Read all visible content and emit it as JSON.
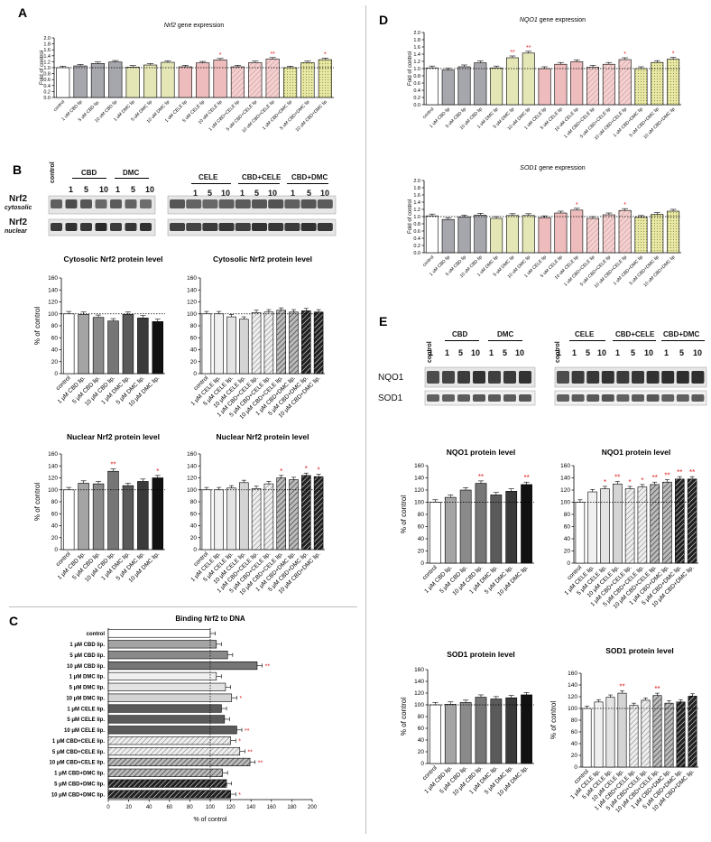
{
  "panels": {
    "A": "A",
    "B": "B",
    "C": "C",
    "D": "D",
    "E": "E"
  },
  "blots": {
    "B": {
      "row1_label": "Nrf2",
      "row1_sub": "cytosolic",
      "row2_label": "Nrf2",
      "row2_sub": "nuclear",
      "left": {
        "control": "control",
        "groups": [
          "CBD",
          "DMC"
        ],
        "doses": [
          "1",
          "5",
          "10"
        ]
      },
      "right": {
        "groups": [
          "CELE",
          "CBD+CELE",
          "CBD+DMC"
        ],
        "doses": [
          "1",
          "5",
          "10"
        ]
      }
    },
    "E": {
      "row1_label": "NQO1",
      "row2_label": "SOD1",
      "left": {
        "control": "control",
        "groups": [
          "CBD",
          "DMC"
        ],
        "doses": [
          "1",
          "5",
          "10"
        ]
      },
      "right": {
        "control": "control",
        "groups": [
          "CELE",
          "CBD+CELE",
          "CBD+DMC"
        ],
        "doses": [
          "1",
          "5",
          "10"
        ]
      }
    }
  },
  "colors": {
    "white": "#ffffff",
    "grey": "#a6a6ad",
    "yellow": "#e5e6b5",
    "pink": "#eebcbc",
    "yellowhatch": "#d9d98c",
    "sig": "#e02020"
  },
  "chart_data": [
    {
      "id": "A",
      "type": "bar",
      "title": "Nrf2 gene expression",
      "title_italic_part": "Nrf2",
      "title_rest": " gene expression",
      "ylabel": "Fold of control",
      "ylim": [
        0,
        2.0
      ],
      "yticks": [
        "0.0",
        "0.2",
        "0.4",
        "0.6",
        "0.8",
        "1.0",
        "1.2",
        "1.4",
        "1.6",
        "1.8",
        "2.0"
      ],
      "reference_line": 1.0,
      "categories": [
        "control",
        "1 uM CBD lip",
        "5 uM CBD lip.",
        "10 uM CBD lip",
        "1 uM DMC lip",
        "5 uM DMC lip",
        "10 uM DMC lip",
        "1 uM CELE lip",
        "5 uM CELE lip",
        "10 uM CELE lip",
        "1 uM CBD+CELE lip",
        "5 uM CBD+CELE lip",
        "10 uM CBD+CELE lip",
        "1 uM CBD+DMC lip",
        "5 uM CBD+DMC lip",
        "10 uM CBD+DMC lip"
      ],
      "values": [
        1.0,
        1.06,
        1.14,
        1.19,
        1.02,
        1.09,
        1.18,
        1.03,
        1.16,
        1.26,
        1.03,
        1.17,
        1.29,
        1.0,
        1.17,
        1.27
      ],
      "fills": [
        "white",
        "grey",
        "grey",
        "grey",
        "yellow",
        "yellow",
        "yellow",
        "pink",
        "pink",
        "pink",
        "pinkhatch",
        "pinkhatch",
        "pinkhatch",
        "yellowhatch",
        "yellowhatch",
        "yellowhatch"
      ],
      "sig": [
        "",
        "",
        "",
        "",
        "",
        "",
        "",
        "",
        "",
        "*",
        "",
        "",
        "**",
        "",
        "",
        "*"
      ]
    },
    {
      "id": "D1",
      "type": "bar",
      "title": "NQO1 gene expression",
      "title_italic_part": "NQO1",
      "title_rest": " gene expression",
      "ylabel": "Fold of control",
      "ylim": [
        0,
        2.0
      ],
      "yticks": [
        "0.0",
        "0.2",
        "0.4",
        "0.6",
        "0.8",
        "1.0",
        "1.2",
        "1.4",
        "1.6",
        "1.8",
        "2.0"
      ],
      "reference_line": 1.0,
      "categories": [
        "control",
        "1 uM CBD lip",
        "5 uM CBD lip",
        "10 uM CBD lip",
        "1 uM DMC lip",
        "5 uM DMC lip",
        "10 uM DMC lip",
        "1 uM CELE lip",
        "5 uM CELE lip",
        "10 uM CELE lip",
        "1 uM CBD+CELE lip",
        "5 uM CBD+CELE lip",
        "10 uM CBD+CELE lip",
        "1 uM CBD+DMC lip",
        "5 uM CBD+DMC lip",
        "10 uM CBD+DMC lip"
      ],
      "values": [
        1.02,
        0.96,
        1.05,
        1.16,
        1.02,
        1.3,
        1.43,
        1.0,
        1.12,
        1.19,
        1.04,
        1.12,
        1.25,
        1.0,
        1.17,
        1.26
      ],
      "fills": [
        "white",
        "grey",
        "grey",
        "grey",
        "yellow",
        "yellow",
        "yellow",
        "pink",
        "pink",
        "pink",
        "pinkhatch",
        "pinkhatch",
        "pinkhatch",
        "yellowhatch",
        "yellowhatch",
        "yellowhatch"
      ],
      "sig": [
        "",
        "",
        "",
        "",
        "",
        "**",
        "**",
        "",
        "",
        "",
        "",
        "",
        "*",
        "",
        "",
        "*"
      ]
    },
    {
      "id": "D2",
      "type": "bar",
      "title": "SOD1 gene expression",
      "title_italic_part": "SOD1",
      "title_rest": " gene expression",
      "ylabel": "Fold of control",
      "ylim": [
        0,
        2.0
      ],
      "yticks": [
        "0.0",
        "0.2",
        "0.4",
        "0.6",
        "0.8",
        "1.0",
        "1.2",
        "1.4",
        "1.6",
        "1.8",
        "2.0"
      ],
      "reference_line": 1.0,
      "categories": [
        "control",
        "1 uM CBD lip",
        "5 uM CBD lip",
        "10 uM CBD lip",
        "1 uM DMC lip",
        "5 uM DMC lip",
        "10 uM DMC lip",
        "1 uM CELE lip",
        "5 uM CELE lip",
        "10 uM CELE lip",
        "1 uM CBD+CELE lip",
        "5 uM CBD+CELE lip",
        "10 uM CBD+CELE lip",
        "1 uM CBD+DMC lip",
        "5 uM CBD+DMC lip",
        "10 uM CBD+DMC lip"
      ],
      "values": [
        1.02,
        0.92,
        0.99,
        1.04,
        0.95,
        1.03,
        1.03,
        0.97,
        1.1,
        1.18,
        0.95,
        1.05,
        1.17,
        0.98,
        1.06,
        1.15
      ],
      "fills": [
        "white",
        "grey",
        "grey",
        "grey",
        "yellow",
        "yellow",
        "yellow",
        "pink",
        "pink",
        "pink",
        "pinkhatch",
        "pinkhatch",
        "pinkhatch",
        "yellowhatch",
        "yellowhatch",
        "yellowhatch"
      ],
      "sig": [
        "",
        "",
        "",
        "",
        "",
        "",
        "",
        "",
        "",
        "*",
        "",
        "",
        "*",
        "",
        "",
        ""
      ]
    },
    {
      "id": "B1",
      "type": "bar",
      "title": "Cytosolic Nrf2 protein level",
      "ylabel": "% of control",
      "ylim": [
        0,
        160
      ],
      "yticks": [
        "0",
        "20",
        "40",
        "60",
        "80",
        "100",
        "120",
        "140",
        "160"
      ],
      "reference_line": 100,
      "categories": [
        "control",
        "1 μM CBD lip.",
        "5 μM CBD lip.",
        "10 μM CBD lip.",
        "1 μM DMC lip.",
        "5 μM DMC lip.",
        "10 μM DMC lip."
      ],
      "values": [
        100,
        99,
        94,
        88,
        99,
        93,
        87
      ],
      "fills": [
        "white",
        "g1",
        "g2",
        "g3",
        "g4",
        "g5",
        "g6"
      ],
      "sig": [
        "",
        "",
        "",
        "",
        "",
        "",
        ""
      ]
    },
    {
      "id": "B2",
      "type": "bar",
      "title": "Cytosolic Nrf2 protein level",
      "ylabel": "",
      "ylim": [
        0,
        160
      ],
      "yticks": [
        "0",
        "20",
        "40",
        "60",
        "80",
        "100",
        "120",
        "140",
        "160"
      ],
      "reference_line": 100,
      "categories": [
        "control",
        "1 μM CELE lip.",
        "5 μM CELE lip.",
        "10 μM CELE lip.",
        "1 μM CBD+CELE lip.",
        "5 μM CBD+CELE lip.",
        "10 μM CBD+CELE lip.",
        "1 μM CBD+DMC lip.",
        "5 μM CBD+DMC lip.",
        "10 μM CBD+DMC lip."
      ],
      "values": [
        100,
        100,
        95,
        91,
        102,
        103,
        106,
        103,
        105,
        103
      ],
      "fills": [
        "white",
        "l1",
        "l2",
        "l3",
        "h1",
        "h2",
        "h3",
        "d1",
        "d2",
        "d3"
      ],
      "sig": [
        "",
        "",
        "",
        "",
        "",
        "",
        "",
        "",
        "",
        ""
      ]
    },
    {
      "id": "B3",
      "type": "bar",
      "title": "Nuclear Nrf2 protein level",
      "ylabel": "% of control",
      "ylim": [
        0,
        160
      ],
      "yticks": [
        "0",
        "20",
        "40",
        "60",
        "80",
        "100",
        "120",
        "140",
        "160"
      ],
      "reference_line": 100,
      "categories": [
        "control",
        "1 μM CBD lip.",
        "5 μM CBD lip.",
        "10 μM CBD lip.",
        "1 μM DMC lip.",
        "5 μM DMC lip.",
        "10 μM DMC lip."
      ],
      "values": [
        100,
        111,
        110,
        131,
        107,
        114,
        120
      ],
      "fills": [
        "white",
        "g1",
        "g2",
        "g3",
        "g4",
        "g5",
        "g6"
      ],
      "sig": [
        "",
        "",
        "",
        "**",
        "",
        "",
        "*"
      ]
    },
    {
      "id": "B4",
      "type": "bar",
      "title": "Nuclear Nrf2 protein level",
      "ylabel": "",
      "ylim": [
        0,
        160
      ],
      "yticks": [
        "0",
        "20",
        "40",
        "60",
        "80",
        "100",
        "120",
        "140",
        "160"
      ],
      "reference_line": 100,
      "categories": [
        "control",
        "1 μM CELE lip.",
        "5 μM CELE lip.",
        "10 μM CELE lip.",
        "1 μM CBD+CELE lip.",
        "5 μM CBD+CELE lip.",
        "10 μM CBD+CELE lip.",
        "1 μM CBD+DMC lip.",
        "5 μM CBD+DMC lip.",
        "10 μM CBD+DMC lip."
      ],
      "values": [
        100,
        100,
        103,
        112,
        102,
        110,
        120,
        117,
        124,
        122
      ],
      "fills": [
        "white",
        "l1",
        "l2",
        "l3",
        "h1",
        "h2",
        "h3",
        "d1",
        "d2",
        "d3"
      ],
      "sig": [
        "",
        "",
        "",
        "",
        "",
        "",
        "*",
        "",
        "*",
        "*"
      ]
    },
    {
      "id": "E1",
      "type": "bar",
      "title": "NQO1 protein level",
      "ylabel": "% of control",
      "ylim": [
        0,
        160
      ],
      "yticks": [
        "0",
        "20",
        "40",
        "60",
        "80",
        "100",
        "120",
        "140",
        "160"
      ],
      "reference_line": 100,
      "categories": [
        "control",
        "1 μM CBD lip.",
        "5 μM CBD lip.",
        "10 μM CBD lip.",
        "1 μM DMC lip.",
        "5 μM DMC lip.",
        "10 μM DMC lip."
      ],
      "values": [
        100,
        108,
        120,
        131,
        112,
        118,
        129
      ],
      "fills": [
        "white",
        "g1",
        "g2",
        "g3",
        "g4",
        "g5",
        "g6"
      ],
      "sig": [
        "",
        "",
        "",
        "**",
        "",
        "",
        "**"
      ]
    },
    {
      "id": "E2",
      "type": "bar",
      "title": "NQO1 protein level",
      "ylabel": "",
      "ylim": [
        0,
        160
      ],
      "yticks": [
        "0",
        "20",
        "40",
        "60",
        "80",
        "100",
        "120",
        "140",
        "160"
      ],
      "reference_line": 100,
      "categories": [
        "control",
        "1 μM CELE lip.",
        "5 μM CELE lip.",
        "10 μM CELE lip.",
        "1 μM CBD+CELE lip.",
        "5 μM CBD+CELE lip.",
        "10 μM CBD+CELE lip.",
        "1 μM CBD+DMC lip.",
        "5 μM CBD+DMC lip.",
        "10 μM CBD+DMC lip."
      ],
      "values": [
        100,
        117,
        122,
        130,
        122,
        125,
        129,
        133,
        138,
        138
      ],
      "fills": [
        "white",
        "l1",
        "l2",
        "l3",
        "h1",
        "h2",
        "h3",
        "d1",
        "d2",
        "d3"
      ],
      "sig": [
        "",
        "",
        "*",
        "**",
        "*",
        "*",
        "**",
        "**",
        "**",
        "**"
      ]
    },
    {
      "id": "E3",
      "type": "bar",
      "title": "SOD1 protein level",
      "ylabel": "% of control",
      "ylim": [
        0,
        160
      ],
      "yticks": [
        "0",
        "20",
        "40",
        "60",
        "80",
        "100",
        "120",
        "140",
        "160"
      ],
      "reference_line": 100,
      "categories": [
        "control",
        "1 μM CBD lip.",
        "5 μM CBD lip.",
        "10 μM CBD lip.",
        "1 μM DMC lip.",
        "5 μM DMC lip.",
        "10 μM DMC lip."
      ],
      "values": [
        100,
        101,
        104,
        113,
        110,
        112,
        117
      ],
      "fills": [
        "white",
        "g1",
        "g2",
        "g3",
        "g4",
        "g5",
        "g6"
      ],
      "sig": [
        "",
        "",
        "",
        "",
        "",
        "",
        ""
      ]
    },
    {
      "id": "E4",
      "type": "bar",
      "title": "SOD1 protein level",
      "ylabel": "% of control",
      "ylim": [
        0,
        160
      ],
      "yticks": [
        "0",
        "20",
        "40",
        "60",
        "80",
        "100",
        "120",
        "140",
        "160"
      ],
      "reference_line": 100,
      "categories": [
        "control",
        "1 μM CELE lip.",
        "5 μM CELE lip.",
        "10 μM CELE lip.",
        "1 μM CBD+CELE lip.",
        "5 μM CBD+CELE lip.",
        "10 μM CBD+CELE lip.",
        "1 μM CBD+DMC lip.",
        "5 μM CBD+DMC lip.",
        "10 μM CBD+DMC lip."
      ],
      "values": [
        100,
        111,
        119,
        126,
        105,
        114,
        122,
        109,
        111,
        121
      ],
      "fills": [
        "white",
        "l1",
        "l2",
        "l3",
        "h1",
        "h2",
        "h3",
        "d1",
        "d2",
        "d3"
      ],
      "sig": [
        "",
        "",
        "",
        "**",
        "",
        "",
        "**",
        "",
        "",
        ""
      ]
    },
    {
      "id": "C",
      "type": "bar",
      "orientation": "horizontal",
      "title": "Binding Nrf2 to DNA",
      "xlabel": "% of control",
      "xlim": [
        0,
        200
      ],
      "xticks": [
        "0",
        "20",
        "40",
        "60",
        "80",
        "100",
        "120",
        "140",
        "160",
        "180",
        "200"
      ],
      "reference_line": 100,
      "categories": [
        "control",
        "1 μM CBD lip.",
        "5 μM CBD lip.",
        "10 μM CBD lip.",
        "1 μM DMC lip.",
        "5 μM DMC lip.",
        "10 μM DMC lip.",
        "1 μM CELE lip.",
        "5 μM CELE lip.",
        "10 μM CELE lip.",
        "1 μM CBD+CELE lip.",
        "5 μM CBD+CELE lip.",
        "10 μM CBD+CELE lip.",
        "1 μM CBD+DMC lip.",
        "5 μM CBD+DMC lip.",
        "10 μM CBD+DMC lip."
      ],
      "values": [
        100,
        106,
        117,
        146,
        106,
        115,
        121,
        111,
        114,
        126,
        120,
        129,
        139,
        112,
        116,
        120
      ],
      "fills": [
        "white",
        "g1",
        "g2",
        "g3",
        "l1",
        "l2",
        "l3",
        "k1",
        "k2",
        "k3",
        "h1",
        "h2",
        "h3",
        "d1",
        "d2",
        "d3"
      ],
      "sig": [
        "",
        "",
        "",
        "**",
        "",
        "",
        "*",
        "",
        "",
        "**",
        "*",
        "**",
        "**",
        "",
        "",
        "*"
      ]
    }
  ]
}
